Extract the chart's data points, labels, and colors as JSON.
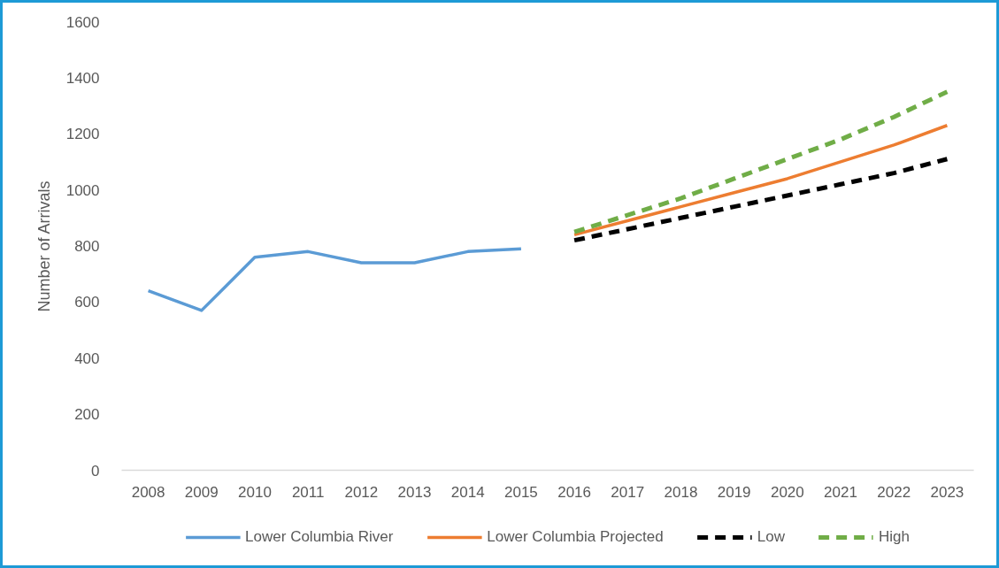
{
  "chart_data": {
    "type": "line",
    "ylabel": "Number of Arrivals",
    "categories": [
      "2008",
      "2009",
      "2010",
      "2011",
      "2012",
      "2013",
      "2014",
      "2015",
      "2016",
      "2017",
      "2018",
      "2019",
      "2020",
      "2021",
      "2022",
      "2023"
    ],
    "ylim": [
      0,
      1600
    ],
    "yticks": [
      0,
      200,
      400,
      600,
      800,
      1000,
      1200,
      1400,
      1600
    ],
    "grid": false,
    "legend": "bottom",
    "series": [
      {
        "name": "Lower Columbia River",
        "color": "#5b9bd5",
        "line_style": "solid",
        "values": [
          640,
          570,
          760,
          780,
          740,
          740,
          780,
          790,
          null,
          null,
          null,
          null,
          null,
          null,
          null,
          null
        ]
      },
      {
        "name": "Lower Columbia Projected",
        "color": "#ed7d31",
        "line_style": "solid",
        "values": [
          null,
          null,
          null,
          null,
          null,
          null,
          null,
          null,
          840,
          890,
          940,
          990,
          1040,
          1100,
          1160,
          1230
        ]
      },
      {
        "name": "Low",
        "color": "#000000",
        "line_style": "dashed",
        "values": [
          null,
          null,
          null,
          null,
          null,
          null,
          null,
          null,
          820,
          860,
          900,
          940,
          980,
          1020,
          1060,
          1110
        ]
      },
      {
        "name": "High",
        "color": "#70ad47",
        "line_style": "dashed",
        "values": [
          null,
          null,
          null,
          null,
          null,
          null,
          null,
          null,
          850,
          910,
          970,
          1040,
          1110,
          1180,
          1260,
          1350
        ]
      }
    ]
  }
}
